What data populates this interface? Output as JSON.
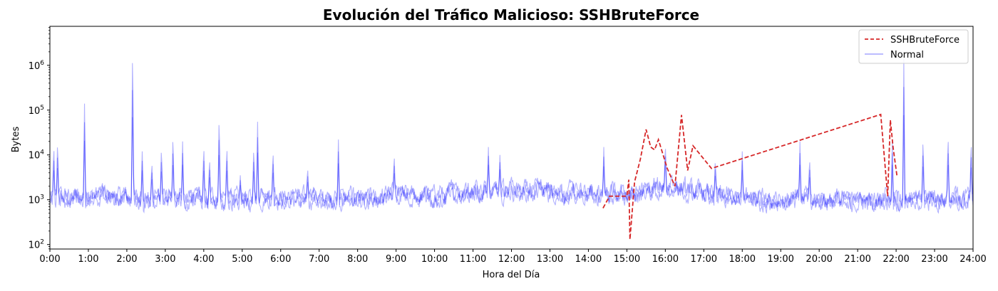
{
  "chart_data": {
    "type": "line",
    "title": "Evolución del Tráfico Malicioso: SSHBruteForce",
    "xlabel": "Hora del Día",
    "ylabel": "Bytes",
    "x_unit": "hours",
    "xlim": [
      0,
      24
    ],
    "ylim_log10": [
      1.9,
      6.87
    ],
    "y_scale": "log",
    "x_ticks": [
      0,
      1,
      2,
      3,
      4,
      5,
      6,
      7,
      8,
      9,
      10,
      11,
      12,
      13,
      14,
      15,
      16,
      17,
      18,
      19,
      20,
      21,
      22,
      23,
      24
    ],
    "x_tick_labels": [
      "0:00",
      "1:00",
      "2:00",
      "3:00",
      "4:00",
      "5:00",
      "6:00",
      "7:00",
      "8:00",
      "9:00",
      "10:00",
      "11:00",
      "12:00",
      "13:00",
      "14:00",
      "15:00",
      "16:00",
      "17:00",
      "18:00",
      "19:00",
      "20:00",
      "21:00",
      "22:00",
      "23:00",
      "24:00"
    ],
    "y_ticks": [
      100,
      1000,
      10000,
      100000,
      1000000
    ],
    "y_tick_labels": [
      {
        "base": "10",
        "exp": "2"
      },
      {
        "base": "10",
        "exp": "3"
      },
      {
        "base": "10",
        "exp": "4"
      },
      {
        "base": "10",
        "exp": "5"
      },
      {
        "base": "10",
        "exp": "6"
      }
    ],
    "legend_position": "top-right",
    "series": [
      {
        "name": "SSHBruteForce",
        "color": "#d62728",
        "style": "dashed",
        "x": [
          14.38,
          14.55,
          14.75,
          15.0,
          15.05,
          15.08,
          15.2,
          15.35,
          15.5,
          15.62,
          15.72,
          15.82,
          16.05,
          16.25,
          16.42,
          16.58,
          16.72,
          17.2,
          21.6,
          21.78,
          21.85,
          21.92,
          22.02
        ],
        "y": [
          650,
          1200,
          1200,
          1200,
          2800,
          130,
          2500,
          8000,
          37000,
          15000,
          13000,
          22000,
          5000,
          2000,
          78000,
          4500,
          16000,
          5000,
          80000,
          1200,
          60000,
          15000,
          3500
        ]
      },
      {
        "name": "Normal",
        "color": "#0000ff",
        "style": "solid",
        "opacity": 0.3,
        "baseline": [
          {
            "x": 0,
            "y": 1000
          },
          {
            "x": 1,
            "y": 1200
          },
          {
            "x": 3,
            "y": 1000
          },
          {
            "x": 5,
            "y": 1000
          },
          {
            "x": 6,
            "y": 1100
          },
          {
            "x": 7,
            "y": 1000
          },
          {
            "x": 8.7,
            "y": 1100
          },
          {
            "x": 9,
            "y": 1300
          },
          {
            "x": 10,
            "y": 1200
          },
          {
            "x": 11,
            "y": 1500
          },
          {
            "x": 12,
            "y": 1600
          },
          {
            "x": 13,
            "y": 1500
          },
          {
            "x": 14,
            "y": 1300
          },
          {
            "x": 15,
            "y": 1200
          },
          {
            "x": 16,
            "y": 2000
          },
          {
            "x": 17,
            "y": 1400
          },
          {
            "x": 18,
            "y": 1100
          },
          {
            "x": 19,
            "y": 1000
          },
          {
            "x": 20,
            "y": 1000
          },
          {
            "x": 21,
            "y": 900
          },
          {
            "x": 22,
            "y": 1000
          },
          {
            "x": 23,
            "y": 1000
          },
          {
            "x": 24,
            "y": 1100
          }
        ],
        "peaks": [
          {
            "x": 0.1,
            "y": 20000
          },
          {
            "x": 0.2,
            "y": 25000
          },
          {
            "x": 0.9,
            "y": 140000
          },
          {
            "x": 2.15,
            "y": 4500000
          },
          {
            "x": 2.4,
            "y": 12000
          },
          {
            "x": 2.65,
            "y": 8000
          },
          {
            "x": 2.9,
            "y": 18000
          },
          {
            "x": 3.2,
            "y": 35000
          },
          {
            "x": 3.45,
            "y": 20000
          },
          {
            "x": 4.0,
            "y": 20000
          },
          {
            "x": 4.15,
            "y": 10000
          },
          {
            "x": 4.4,
            "y": 100000
          },
          {
            "x": 4.6,
            "y": 20000
          },
          {
            "x": 4.95,
            "y": 3500
          },
          {
            "x": 5.3,
            "y": 18000
          },
          {
            "x": 5.4,
            "y": 55000
          },
          {
            "x": 5.8,
            "y": 15000
          },
          {
            "x": 6.7,
            "y": 6000
          },
          {
            "x": 7.5,
            "y": 22000
          },
          {
            "x": 8.95,
            "y": 12000
          },
          {
            "x": 11.4,
            "y": 15000
          },
          {
            "x": 11.7,
            "y": 10000
          },
          {
            "x": 14.4,
            "y": 15000
          },
          {
            "x": 16.0,
            "y": 20000
          },
          {
            "x": 17.3,
            "y": 9000
          },
          {
            "x": 18.0,
            "y": 12000
          },
          {
            "x": 19.5,
            "y": 20000
          },
          {
            "x": 19.75,
            "y": 10000
          },
          {
            "x": 21.9,
            "y": 20000
          },
          {
            "x": 22.2,
            "y": 1400000
          },
          {
            "x": 22.7,
            "y": 30000
          },
          {
            "x": 23.35,
            "y": 35000
          },
          {
            "x": 23.95,
            "y": 25000
          }
        ]
      }
    ]
  }
}
